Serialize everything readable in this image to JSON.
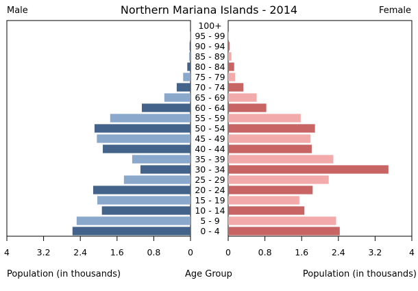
{
  "chart_data": {
    "type": "bar",
    "title": "Northern Mariana Islands - 2014",
    "left_label": "Male",
    "right_label": "Female",
    "xlabel_left": "Population (in thousands)",
    "xlabel_center": "Age Group",
    "xlabel_right": "Population (in thousands)",
    "categories": [
      "0 - 4",
      "5 - 9",
      "10 - 14",
      "15 - 19",
      "20 - 24",
      "25 - 29",
      "30 - 34",
      "35 - 39",
      "40 - 44",
      "45 - 49",
      "50 - 54",
      "55 - 59",
      "60 - 64",
      "65 - 69",
      "70 - 74",
      "75 - 79",
      "80 - 84",
      "85 - 89",
      "90 - 94",
      "95 - 99",
      "100+"
    ],
    "series": [
      {
        "name": "Male",
        "values": [
          2.57,
          2.48,
          1.93,
          2.03,
          2.12,
          1.45,
          1.09,
          1.27,
          1.91,
          2.04,
          2.09,
          1.75,
          1.06,
          0.57,
          0.3,
          0.16,
          0.07,
          0.03,
          0.02,
          0.01,
          0.0
        ]
      },
      {
        "name": "Female",
        "values": [
          2.43,
          2.35,
          1.66,
          1.55,
          1.84,
          2.19,
          3.49,
          2.29,
          1.82,
          1.79,
          1.89,
          1.58,
          0.83,
          0.62,
          0.33,
          0.15,
          0.13,
          0.07,
          0.03,
          0.01,
          0.0
        ]
      }
    ],
    "xlim": [
      0,
      4
    ],
    "ticks": [
      "4",
      "3.2",
      "2.4",
      "1.6",
      "0.8",
      "0",
      "0",
      "0.8",
      "1.6",
      "2.4",
      "3.2",
      "4"
    ],
    "tick_values": [
      4,
      3.2,
      2.4,
      1.6,
      0.8,
      0
    ],
    "colors": {
      "male_dark": "#44638a",
      "male_light": "#8aa8cc",
      "female_dark": "#c86464",
      "female_light": "#f2aaaa"
    }
  }
}
